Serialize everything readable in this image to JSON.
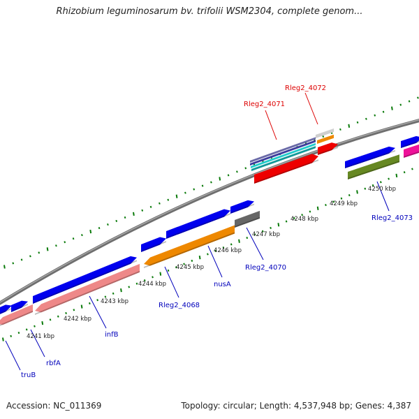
{
  "header": {
    "title": "Rhizobium leguminosarum bv. trifolii WSM2304, complete genom..."
  },
  "footer": {
    "accession": "Accession: NC_011369",
    "summary": "Topology: circular; Length: 4,537,948 bp; Genes: 4,387"
  },
  "colors": {
    "backbone": "#888888",
    "tick_marks": "#0a7a0a",
    "forward_gene": "#0000ee",
    "label_blue": "#0000bb",
    "label_red": "#dd0000",
    "pink": "#ee8888",
    "orange": "#ee8800",
    "red": "#ee0000",
    "grey": "#666666",
    "olive": "#668822",
    "magenta": "#ee1199",
    "cyan": "#22cccc"
  },
  "scale_labels": [
    "4241 kbp",
    "4242 kbp",
    "4243 kbp",
    "4244 kbp",
    "4245 kbp",
    "4246 kbp",
    "4247 kbp",
    "4248 kbp",
    "4249 kbp",
    "4250 kbp"
  ],
  "gene_labels": {
    "truB": "truB",
    "rbfA": "rbfA",
    "infB": "infB",
    "rleg2_4068": "Rleg2_4068",
    "nusA": "nusA",
    "rleg2_4070": "Rleg2_4070",
    "rleg2_4071": "Rleg2_4071",
    "rleg2_4072": "Rleg2_4072",
    "rleg2_4073": "Rleg2_4073"
  }
}
